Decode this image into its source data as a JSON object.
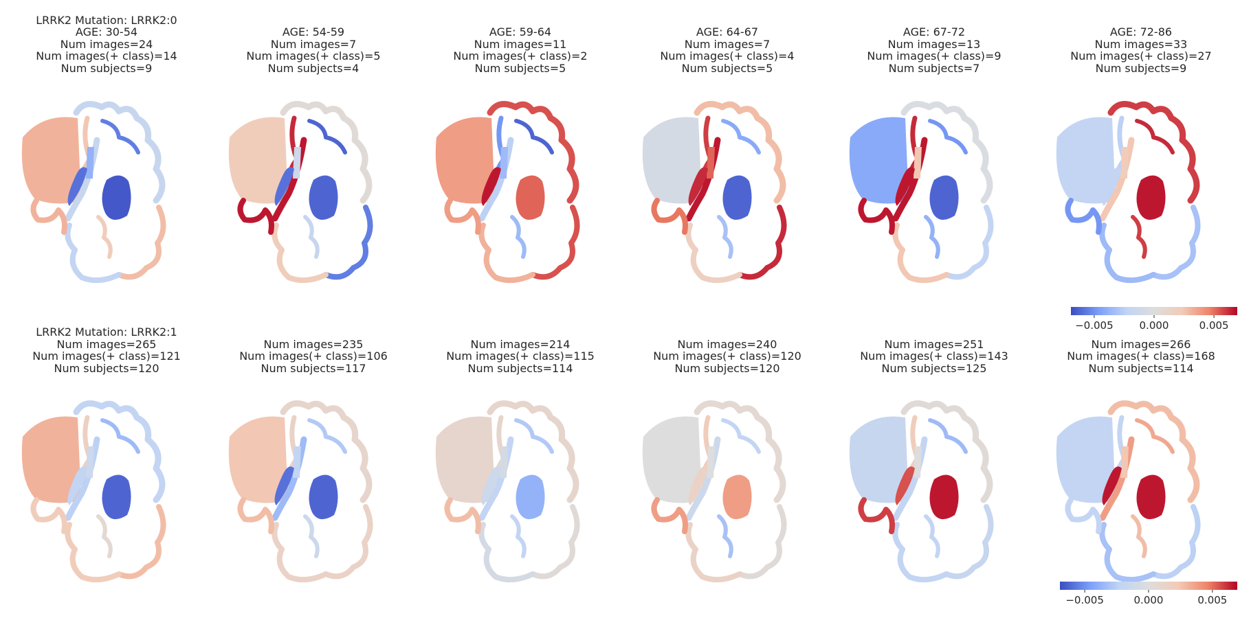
{
  "colormap": {
    "name": "coolwarm",
    "stops": [
      "#3b4cc0",
      "#7b9ff9",
      "#c0d4f5",
      "#dddddd",
      "#f2cbb7",
      "#ee8468",
      "#b40426"
    ],
    "ticks": [
      "−0.005",
      "0.000",
      "0.005"
    ]
  },
  "rows": [
    {
      "group": "LRRK2 Mutation: LRRK2:0",
      "panels": [
        {
          "lines": [
            "LRRK2 Mutation: LRRK2:0",
            "AGE: 30-54",
            "Num images=24",
            "Num images(+ class)=14",
            "Num subjects=9"
          ],
          "regions": {
            "cerebellum": 0.45,
            "brainstem": -0.25,
            "thalamus": -0.95,
            "putamen": -0.85,
            "caudate": -0.55,
            "cortex_front": -0.25,
            "cortex_left": 0.35,
            "cortex_right": 0.4,
            "cortex_lower": -0.3,
            "strip": -0.8,
            "temporal": 0.45,
            "insula": 0.3
          }
        },
        {
          "lines": [
            "AGE: 54-59",
            "Num images=7",
            "Num images(+ class)=5",
            "Num subjects=4"
          ],
          "regions": {
            "cerebellum": 0.3,
            "brainstem": 0.95,
            "thalamus": -0.9,
            "putamen": -0.85,
            "caudate": -0.2,
            "cortex_front": 0.05,
            "cortex_left": 0.9,
            "cortex_right": -0.8,
            "cortex_lower": 0.3,
            "strip": -0.9,
            "temporal": 0.95,
            "insula": -0.25
          }
        },
        {
          "lines": [
            "AGE: 59-64",
            "Num images=11",
            "Num images(+ class)=2",
            "Num subjects=5"
          ],
          "regions": {
            "cerebellum": 0.55,
            "brainstem": -0.35,
            "thalamus": 0.75,
            "putamen": 0.95,
            "caudate": -0.5,
            "cortex_front": 0.8,
            "cortex_left": -0.7,
            "cortex_right": 0.8,
            "cortex_lower": 0.45,
            "strip": -0.9,
            "temporal": 0.55,
            "insula": -0.5
          }
        },
        {
          "lines": [
            "AGE: 64-67",
            "Num images=7",
            "Num images(+ class)=4",
            "Num subjects=5"
          ],
          "regions": {
            "cerebellum": -0.1,
            "brainstem": 0.95,
            "thalamus": -0.9,
            "putamen": 0.9,
            "caudate": 0.75,
            "cortex_front": 0.4,
            "cortex_left": 0.85,
            "cortex_right": 0.9,
            "cortex_lower": 0.25,
            "strip": -0.6,
            "temporal": 0.7,
            "insula": -0.45
          }
        },
        {
          "lines": [
            "AGE: 67-72",
            "Num images=13",
            "Num images(+ class)=9",
            "Num subjects=7"
          ],
          "regions": {
            "cerebellum": -0.6,
            "brainstem": 0.95,
            "thalamus": -0.9,
            "putamen": 0.95,
            "caudate": 0.35,
            "cortex_front": -0.05,
            "cortex_left": 0.9,
            "cortex_right": -0.3,
            "cortex_lower": 0.35,
            "strip": -0.7,
            "temporal": 0.95,
            "insula": -0.55
          }
        },
        {
          "lines": [
            "AGE: 72-86",
            "Num images=33",
            "Num images(+ class)=27",
            "Num subjects=9"
          ],
          "regions": {
            "cerebellum": -0.3,
            "brainstem": 0.35,
            "thalamus": 0.95,
            "putamen": -0.3,
            "caudate": 0.3,
            "cortex_front": 0.85,
            "cortex_left": -0.35,
            "cortex_right": -0.45,
            "cortex_lower": -0.5,
            "strip": 0.9,
            "temporal": -0.7,
            "insula": 0.85
          }
        }
      ]
    },
    {
      "group": "LRRK2 Mutation: LRRK2:1",
      "panels": [
        {
          "lines": [
            "LRRK2 Mutation: LRRK2:1",
            "Num images=265",
            "Num images(+ class)=121",
            "Num subjects=120"
          ],
          "regions": {
            "cerebellum": 0.45,
            "brainstem": -0.35,
            "thalamus": -0.9,
            "putamen": -0.3,
            "caudate": -0.2,
            "cortex_front": -0.3,
            "cortex_left": 0.25,
            "cortex_right": 0.4,
            "cortex_lower": 0.3,
            "strip": -0.5,
            "temporal": 0.3,
            "insula": 0.1
          }
        },
        {
          "lines": [
            "Num images=235",
            "Num images(+ class)=106",
            "Num subjects=117"
          ],
          "regions": {
            "cerebellum": 0.35,
            "brainstem": -0.5,
            "thalamus": -0.9,
            "putamen": -0.85,
            "caudate": -0.3,
            "cortex_front": 0.15,
            "cortex_left": 0.2,
            "cortex_right": 0.2,
            "cortex_lower": 0.2,
            "strip": -0.4,
            "temporal": 0.4,
            "insula": -0.2
          }
        },
        {
          "lines": [
            "Num images=214",
            "Num images(+ class)=115",
            "Num subjects=114"
          ],
          "regions": {
            "cerebellum": 0.15,
            "brainstem": -0.3,
            "thalamus": -0.55,
            "putamen": -0.2,
            "caudate": -0.1,
            "cortex_front": 0.15,
            "cortex_left": 0.15,
            "cortex_right": 0.05,
            "cortex_lower": -0.1,
            "strip": -0.4,
            "temporal": 0.4,
            "insula": -0.3
          }
        },
        {
          "lines": [
            "Num images=240",
            "Num images(+ class)=120",
            "Num subjects=120"
          ],
          "regions": {
            "cerebellum": 0.0,
            "brainstem": -0.2,
            "thalamus": 0.55,
            "putamen": 0.2,
            "caudate": 0.0,
            "cortex_front": 0.1,
            "cortex_left": 0.3,
            "cortex_right": 0.05,
            "cortex_lower": 0.2,
            "strip": -0.3,
            "temporal": 0.55,
            "insula": -0.45
          }
        },
        {
          "lines": [
            "Num images=251",
            "Num images(+ class)=143",
            "Num subjects=125"
          ],
          "regions": {
            "cerebellum": -0.25,
            "brainstem": -0.3,
            "thalamus": 0.95,
            "putamen": 0.8,
            "caudate": 0.0,
            "cortex_front": 0.05,
            "cortex_left": 0.3,
            "cortex_right": -0.25,
            "cortex_lower": -0.3,
            "strip": -0.5,
            "temporal": 0.85,
            "insula": -0.3
          }
        },
        {
          "lines": [
            "Num images=266",
            "Num images(+ class)=168",
            "Num subjects=114"
          ],
          "regions": {
            "cerebellum": -0.3,
            "brainstem": 0.55,
            "thalamus": 0.95,
            "putamen": 0.95,
            "caudate": 0.35,
            "cortex_front": 0.4,
            "cortex_left": -0.3,
            "cortex_right": -0.35,
            "cortex_lower": -0.45,
            "strip": 0.5,
            "temporal": -0.3,
            "insula": 0.4
          }
        }
      ]
    }
  ]
}
